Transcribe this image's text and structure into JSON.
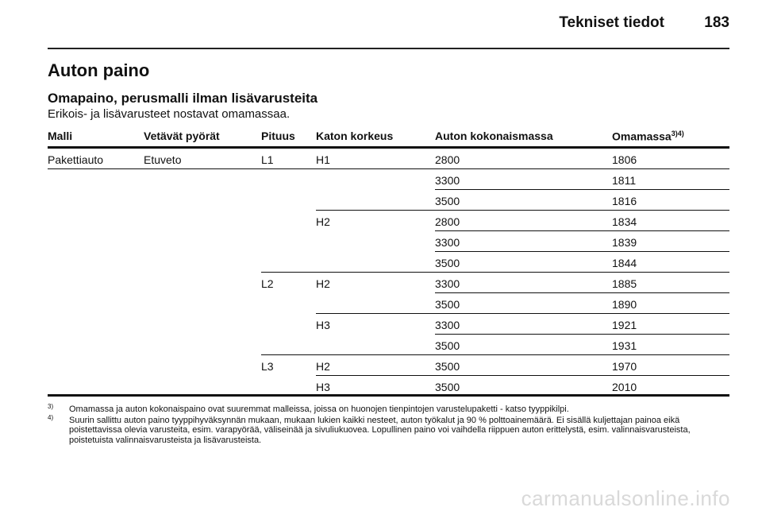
{
  "header": {
    "title": "Tekniset tiedot",
    "page_number": "183"
  },
  "section": {
    "title": "Auton paino",
    "subtitle": "Omapaino, perusmalli ilman lisävarusteita",
    "note": "Erikois- ja lisävarusteet nostavat omamassaa."
  },
  "table": {
    "columns": [
      {
        "label": "Malli",
        "sup": ""
      },
      {
        "label": "Vetävät pyörät",
        "sup": ""
      },
      {
        "label": "Pituus",
        "sup": ""
      },
      {
        "label": "Katon korkeus",
        "sup": ""
      },
      {
        "label": "Auton kokonaismassa",
        "sup": ""
      },
      {
        "label": "Omamassa",
        "sup": "3)4)"
      }
    ],
    "rows": [
      {
        "malli": "Pakettiauto",
        "veto": "Etuveto",
        "pituus": "L1",
        "korkeus": "H1",
        "kokonaismassa": "2800",
        "omamassa": "1806",
        "line_from": 0
      },
      {
        "malli": "",
        "veto": "",
        "pituus": "",
        "korkeus": "",
        "kokonaismassa": "3300",
        "omamassa": "1811",
        "line_from": 4
      },
      {
        "malli": "",
        "veto": "",
        "pituus": "",
        "korkeus": "",
        "kokonaismassa": "3500",
        "omamassa": "1816",
        "line_from": 3
      },
      {
        "malli": "",
        "veto": "",
        "pituus": "",
        "korkeus": "H2",
        "kokonaismassa": "2800",
        "omamassa": "1834",
        "line_from": 4
      },
      {
        "malli": "",
        "veto": "",
        "pituus": "",
        "korkeus": "",
        "kokonaismassa": "3300",
        "omamassa": "1839",
        "line_from": 4
      },
      {
        "malli": "",
        "veto": "",
        "pituus": "",
        "korkeus": "",
        "kokonaismassa": "3500",
        "omamassa": "1844",
        "line_from": 2
      },
      {
        "malli": "",
        "veto": "",
        "pituus": "L2",
        "korkeus": "H2",
        "kokonaismassa": "3300",
        "omamassa": "1885",
        "line_from": 4
      },
      {
        "malli": "",
        "veto": "",
        "pituus": "",
        "korkeus": "",
        "kokonaismassa": "3500",
        "omamassa": "1890",
        "line_from": 3
      },
      {
        "malli": "",
        "veto": "",
        "pituus": "",
        "korkeus": "H3",
        "kokonaismassa": "3300",
        "omamassa": "1921",
        "line_from": 4
      },
      {
        "malli": "",
        "veto": "",
        "pituus": "",
        "korkeus": "",
        "kokonaismassa": "3500",
        "omamassa": "1931",
        "line_from": 2
      },
      {
        "malli": "",
        "veto": "",
        "pituus": "L3",
        "korkeus": "H2",
        "kokonaismassa": "3500",
        "omamassa": "1970",
        "line_from": 3
      },
      {
        "malli": "",
        "veto": "",
        "pituus": "",
        "korkeus": "H3",
        "kokonaismassa": "3500",
        "omamassa": "2010",
        "line_from": 0
      }
    ]
  },
  "footnotes": [
    {
      "mark": "3)",
      "text": "Omamassa ja auton kokonaispaino ovat suuremmat malleissa, joissa on huonojen tienpintojen varustelupaketti - katso tyyppikilpi."
    },
    {
      "mark": "4)",
      "text": "Suurin sallittu auton paino tyyppihyväksynnän mukaan, mukaan lukien kaikki nesteet, auton työkalut ja 90 % polttoainemäärä. Ei sisällä kuljettajan painoa eikä poistettavissa olevia varusteita, esim. varapyörää, väliseinää ja sivuliukuovea. Lopullinen paino voi vaihdella riippuen auton erittelystä, esim. valin­naisvarusteista, poistetuista valinnaisvarusteista ja lisävarusteista."
    }
  ],
  "watermark": "carmanualsonline.info"
}
